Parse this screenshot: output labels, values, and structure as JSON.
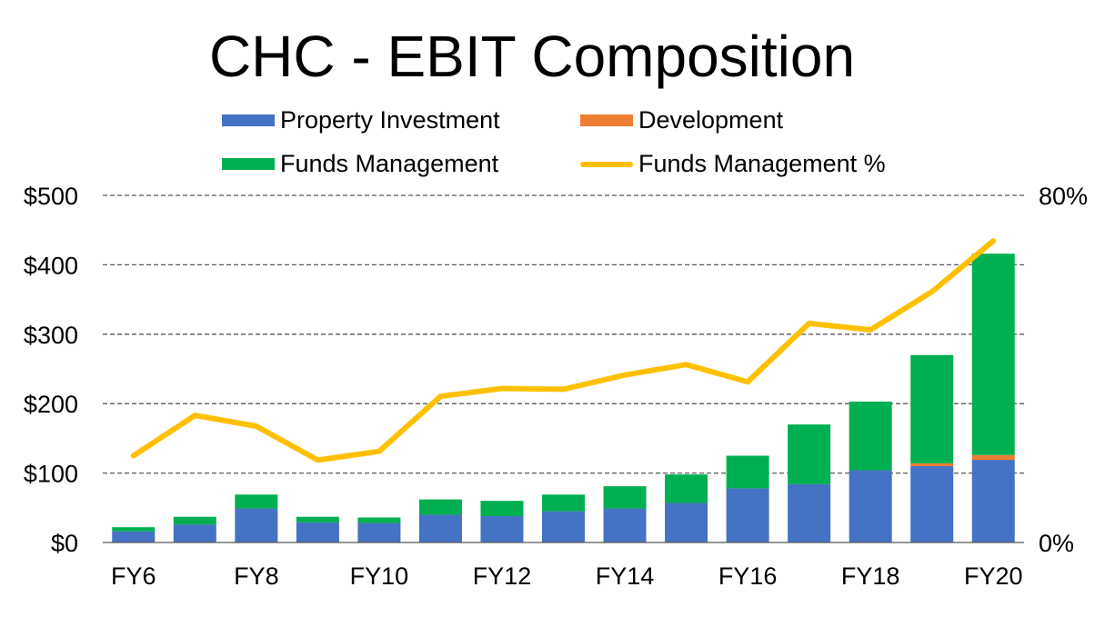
{
  "chart_data": {
    "type": "bar",
    "title": "CHC - EBIT Composition",
    "categories": [
      "FY6",
      "FY7",
      "FY8",
      "FY9",
      "FY10",
      "FY11",
      "FY12",
      "FY13",
      "FY14",
      "FY15",
      "FY16",
      "FY17",
      "FY18",
      "FY19",
      "FY20"
    ],
    "x_tick_labels": [
      "FY6",
      "",
      "FY8",
      "",
      "FY10",
      "",
      "FY12",
      "",
      "FY14",
      "",
      "FY16",
      "",
      "FY18",
      "",
      "FY20"
    ],
    "series": [
      {
        "name": "Property Investment",
        "kind": "stacked-bar",
        "axis": "left",
        "color": "#4472C4",
        "values": [
          16,
          26,
          49,
          29,
          28,
          40,
          38,
          45,
          49,
          57,
          78,
          84,
          104,
          110,
          119
        ]
      },
      {
        "name": "Development",
        "kind": "stacked-bar",
        "axis": "left",
        "color": "#ED7D31",
        "values": [
          0,
          0,
          0,
          0,
          0,
          0,
          0,
          0,
          0,
          0,
          0,
          0,
          0,
          4,
          7
        ]
      },
      {
        "name": "Funds Management",
        "kind": "stacked-bar",
        "axis": "left",
        "color": "#00B050",
        "values": [
          6,
          11,
          20,
          8,
          8,
          22,
          22,
          24,
          32,
          41,
          47,
          86,
          99,
          156,
          290
        ]
      },
      {
        "name": "Funds Management %",
        "kind": "line",
        "axis": "right",
        "color": "#FFC000",
        "values": [
          0.2,
          0.293,
          0.268,
          0.19,
          0.21,
          0.337,
          0.355,
          0.353,
          0.386,
          0.41,
          0.37,
          0.505,
          0.49,
          0.578,
          0.695
        ]
      }
    ],
    "y_left": {
      "ylim": [
        0,
        500
      ],
      "ticks": [
        0,
        100,
        200,
        300,
        400,
        500
      ],
      "tick_labels": [
        "$0",
        "$100",
        "$200",
        "$300",
        "$400",
        "$500"
      ]
    },
    "y_right": {
      "ylim": [
        0,
        0.8
      ],
      "ticks": [
        0,
        0.8
      ],
      "tick_labels": [
        "0%",
        "80%"
      ]
    },
    "grid": "horizontal-dashed",
    "legend_position": "top"
  }
}
